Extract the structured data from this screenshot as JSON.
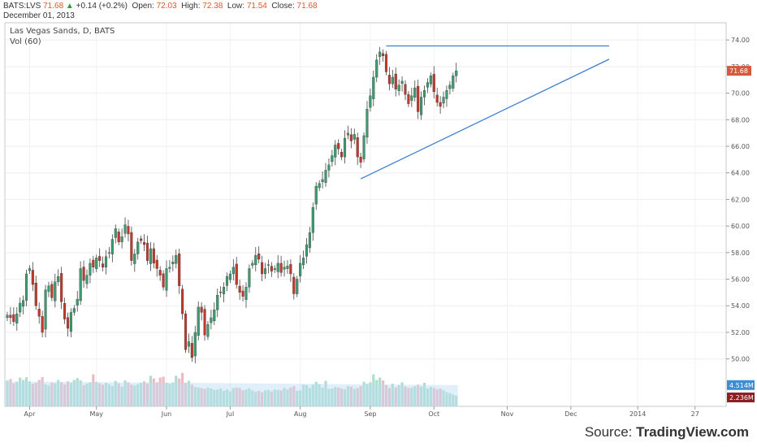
{
  "header": {
    "symbol": "BATS:LVS",
    "last": "71.68",
    "change": "+0.14 (+0.2%)",
    "open_label": "Open:",
    "open": "72.03",
    "high_label": "High:",
    "high": "72.38",
    "low_label": "Low:",
    "low": "71.54",
    "close_label": "Close:",
    "close": "71.68",
    "date": "December 01, 2013"
  },
  "source": {
    "prefix": "Source: ",
    "brand": "TradingView.com"
  },
  "colors": {
    "up": "#3d9970",
    "down": "#c0392b",
    "trend": "#3c7fd0",
    "vol_up": "#9fd8c4",
    "vol_down": "#e8b0b8",
    "vol_ma": "#bcdcf3"
  },
  "chart_data": {
    "type": "candlestick",
    "title": "Las Vegas Sands, D, BATS",
    "subtitle": "Vol (60)",
    "ylim": [
      49,
      74.5
    ],
    "y_ticks": [
      "50.00",
      "52.00",
      "54.00",
      "56.00",
      "58.00",
      "60.00",
      "62.00",
      "64.00",
      "66.00",
      "68.00",
      "70.00",
      "72.00",
      "74.00"
    ],
    "x_ticks": [
      {
        "label": "Apr",
        "i": 7
      },
      {
        "label": "May",
        "i": 28
      },
      {
        "label": "Jun",
        "i": 50
      },
      {
        "label": "Jul",
        "i": 70
      },
      {
        "label": "Aug",
        "i": 92
      },
      {
        "label": "Sep",
        "i": 114
      },
      {
        "label": "Oct",
        "i": 134
      },
      {
        "label": "Nov",
        "i": 157
      },
      {
        "label": "Dec",
        "i": 177
      },
      {
        "label": "2014",
        "i": 198
      },
      {
        "label": "27",
        "i": 216
      }
    ],
    "last_price_label": "71.68",
    "volume_labels": {
      "ma": "4.514M",
      "last": "2.236M"
    },
    "volume_ma": 4.514,
    "closes": [
      53.3,
      53.1,
      52.8,
      53.4,
      54.2,
      54.4,
      56.4,
      56.8,
      55.6,
      54.0,
      53.2,
      52.0,
      55.2,
      55.5,
      54.6,
      55.8,
      56.2,
      54.3,
      53.0,
      52.3,
      53.5,
      53.8,
      54.5,
      56.8,
      55.9,
      56.3,
      57.2,
      56.9,
      57.6,
      57.4,
      56.9,
      57.7,
      58.0,
      59.0,
      59.8,
      58.8,
      59.2,
      60.1,
      59.4,
      57.4,
      57.9,
      58.8,
      58.9,
      58.6,
      57.4,
      58.3,
      57.2,
      56.8,
      56.3,
      55.4,
      56.8,
      56.9,
      57.3,
      57.8,
      55.5,
      53.4,
      50.7,
      51.3,
      50.1,
      52.0,
      53.9,
      53.5,
      51.8,
      52.6,
      53.1,
      53.7,
      54.8,
      55.0,
      55.4,
      56.2,
      56.4,
      56.9,
      55.6,
      55.0,
      54.7,
      55.4,
      56.8,
      57.2,
      57.8,
      57.5,
      56.4,
      56.8,
      57.1,
      56.6,
      56.8,
      57.2,
      56.5,
      56.9,
      57.0,
      56.4,
      54.9,
      56.0,
      57.2,
      57.6,
      58.6,
      59.5,
      61.4,
      63.0,
      63.2,
      63.5,
      64.2,
      64.6,
      65.3,
      66.1,
      65.8,
      65.2,
      66.6,
      67.0,
      66.4,
      66.9,
      65.2,
      64.8,
      66.8,
      68.8,
      69.8,
      71.2,
      72.5,
      73.1,
      72.8,
      71.6,
      70.7,
      71.2,
      70.3,
      70.6,
      70.9,
      69.9,
      69.2,
      69.8,
      70.4,
      68.6,
      69.7,
      70.2,
      70.8,
      71.3,
      70.1,
      69.3,
      69.0,
      69.7,
      70.2,
      70.6,
      71.3,
      71.68
    ],
    "volumes": [
      5.5,
      5.8,
      4.9,
      5.2,
      6.1,
      5.6,
      6.2,
      5.3,
      4.8,
      5.0,
      5.6,
      6.2,
      4.7,
      4.4,
      5.0,
      4.9,
      5.6,
      5.1,
      4.7,
      5.3,
      5.0,
      5.6,
      6.0,
      5.5,
      4.5,
      4.8,
      5.1,
      6.8,
      5.2,
      4.9,
      4.6,
      5.0,
      4.7,
      4.3,
      5.4,
      4.9,
      4.2,
      5.5,
      5.1,
      4.6,
      4.4,
      4.7,
      5.0,
      5.3,
      4.9,
      6.5,
      5.9,
      5.1,
      6.1,
      6.3,
      5.0,
      4.8,
      5.1,
      6.5,
      5.9,
      7.1,
      5.0,
      5.4,
      4.6,
      4.1,
      4.0,
      3.9,
      3.7,
      4.0,
      3.8,
      3.5,
      3.6,
      3.8,
      3.3,
      3.6,
      3.2,
      3.9,
      4.0,
      3.9,
      3.4,
      3.6,
      3.8,
      3.4,
      3.1,
      3.3,
      3.0,
      3.4,
      3.5,
      3.2,
      3.6,
      3.5,
      3.4,
      3.9,
      3.6,
      4.0,
      4.3,
      3.3,
      3.4,
      4.6,
      4.5,
      3.9,
      4.6,
      5.2,
      4.7,
      4.0,
      5.4,
      3.7,
      3.8,
      4.1,
      4.0,
      3.8,
      3.6,
      4.3,
      4.2,
      3.7,
      3.9,
      4.3,
      5.2,
      4.8,
      5.1,
      6.8,
      5.6,
      6.1,
      5.5,
      4.5,
      3.9,
      4.8,
      4.0,
      4.5,
      5.1,
      4.2,
      3.9,
      4.0,
      4.3,
      4.6,
      4.2,
      5.0,
      3.8,
      4.1,
      3.9,
      3.6,
      3.8,
      3.4,
      3.0,
      2.8,
      2.5,
      2.236
    ],
    "trendlines": [
      {
        "from": {
          "i": 119,
          "y": 73.55
        },
        "to": {
          "i": 189,
          "y": 73.55
        }
      },
      {
        "from": {
          "i": 111,
          "y": 63.55
        },
        "to": {
          "i": 189,
          "y": 72.55
        }
      }
    ]
  }
}
